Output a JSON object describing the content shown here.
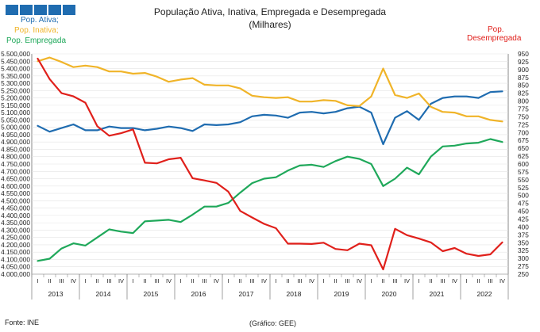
{
  "title_line1": "População Ativa, Inativa, Empregada e Desempregada",
  "title_line2": "(Milhares)",
  "legend": {
    "ativa": "Pop. Ativa;",
    "inativa": "Pop. Inativa;",
    "empregada": "Pop. Empregada",
    "desempregada_line1": "Pop.",
    "desempregada_line2": "Desempregada"
  },
  "source_left": "Fonte: INE",
  "source_center": "(Gráfico: GEE)",
  "colors": {
    "ativa": "#1f6cb0",
    "inativa": "#f0b429",
    "empregada": "#1fa85a",
    "desempregada": "#e0201b",
    "logo": "#1f6cb0"
  },
  "chart_data": {
    "type": "line",
    "x": [
      "I",
      "II",
      "III",
      "IV",
      "I",
      "II",
      "III",
      "IV",
      "I",
      "II",
      "III",
      "IV",
      "I",
      "II",
      "III",
      "IV",
      "I",
      "II",
      "III",
      "IV",
      "I",
      "II",
      "III",
      "IV",
      "I",
      "II",
      "III",
      "IV",
      "I",
      "II",
      "III",
      "IV",
      "I",
      "II",
      "III",
      "IV",
      "I",
      "II",
      "III",
      "IV"
    ],
    "year_labels": [
      "2013",
      "2014",
      "2015",
      "2016",
      "2017",
      "2018",
      "2019",
      "2020",
      "2021",
      "2022"
    ],
    "left_axis": {
      "ylim": [
        4000,
        5500
      ],
      "step": 50
    },
    "right_axis": {
      "ylim": [
        250,
        950
      ],
      "step": 25
    },
    "series": [
      {
        "name": "Pop. Ativa",
        "axis": "left",
        "values": [
          5010,
          4970,
          4995,
          5020,
          4980,
          4980,
          5005,
          4995,
          4995,
          4980,
          4990,
          5005,
          4995,
          4975,
          5020,
          5015,
          5020,
          5035,
          5075,
          5085,
          5080,
          5065,
          5100,
          5105,
          5095,
          5105,
          5130,
          5140,
          5100,
          4885,
          5065,
          5110,
          5050,
          5160,
          5200,
          5210,
          5210,
          5200,
          5240,
          5245
        ]
      },
      {
        "name": "Pop. Inativa",
        "axis": "left",
        "values": [
          5450,
          5475,
          5445,
          5410,
          5420,
          5410,
          5380,
          5380,
          5365,
          5370,
          5345,
          5310,
          5325,
          5335,
          5290,
          5285,
          5285,
          5265,
          5215,
          5205,
          5200,
          5205,
          5175,
          5175,
          5185,
          5180,
          5150,
          5145,
          5210,
          5400,
          5220,
          5200,
          5230,
          5140,
          5105,
          5100,
          5075,
          5075,
          5050,
          5040
        ]
      },
      {
        "name": "Pop. Empregada",
        "axis": "left",
        "values": [
          4090,
          4105,
          4175,
          4210,
          4195,
          4250,
          4305,
          4290,
          4280,
          4360,
          4365,
          4370,
          4355,
          4405,
          4460,
          4460,
          4485,
          4555,
          4620,
          4650,
          4660,
          4705,
          4740,
          4745,
          4730,
          4770,
          4800,
          4785,
          4750,
          4600,
          4650,
          4725,
          4680,
          4800,
          4870,
          4875,
          4890,
          4895,
          4920,
          4900
        ]
      },
      {
        "name": "Pop. Desempregada",
        "axis": "right",
        "values": [
          935,
          870,
          825,
          815,
          795,
          720,
          690,
          698,
          710,
          604,
          602,
          615,
          620,
          555,
          548,
          540,
          512,
          451,
          430,
          410,
          396,
          347,
          347,
          346,
          350,
          330,
          326,
          347,
          342,
          265,
          394,
          374,
          363,
          351,
          323,
          333,
          315,
          308,
          313,
          351
        ]
      }
    ]
  }
}
